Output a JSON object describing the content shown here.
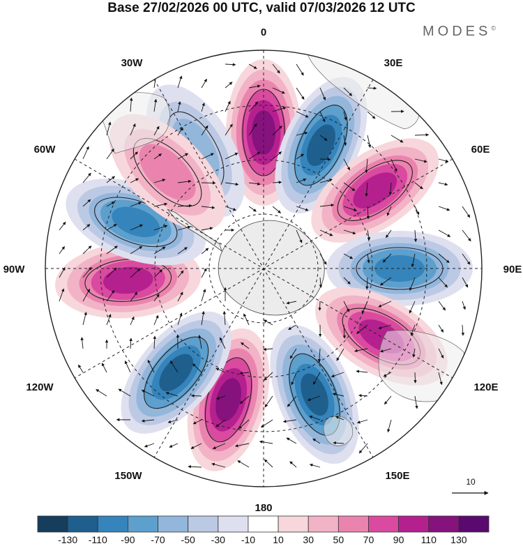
{
  "title": "Base 27/02/2026 00 UTC, valid 07/03/2026 12 UTC",
  "brand": {
    "name": "MODES",
    "mark": "©"
  },
  "map": {
    "projection": "south-polar-stereographic",
    "longitude_labels": {
      "top": "0",
      "top_right": "30E",
      "upper_right": "60E",
      "right": "90E",
      "lower_right": "120E",
      "bottom_right": "150E",
      "bottom": "180",
      "bottom_left": "150W",
      "lower_left": "120W",
      "left": "90W",
      "upper_left": "60W",
      "top_left": "30W"
    },
    "wind_reference": {
      "value": "10"
    },
    "anomaly_lobes": [
      {
        "sign": "positive",
        "magnitude": 110,
        "longitude_deg": 0
      },
      {
        "sign": "negative",
        "magnitude": 110,
        "longitude_deg": 25
      },
      {
        "sign": "positive",
        "magnitude": 100,
        "longitude_deg": 55
      },
      {
        "sign": "negative",
        "magnitude": 90,
        "longitude_deg": 90
      },
      {
        "sign": "positive",
        "magnitude": 90,
        "longitude_deg": 120
      },
      {
        "sign": "negative",
        "magnitude": 110,
        "longitude_deg": 158
      },
      {
        "sign": "positive",
        "magnitude": 110,
        "longitude_deg": -165
      },
      {
        "sign": "negative",
        "magnitude": 110,
        "longitude_deg": -140
      },
      {
        "sign": "positive",
        "magnitude": 90,
        "longitude_deg": -95
      },
      {
        "sign": "negative",
        "magnitude": 90,
        "longitude_deg": -70
      },
      {
        "sign": "negative",
        "magnitude": 50,
        "longitude_deg": -30
      },
      {
        "sign": "positive",
        "magnitude": 50,
        "longitude_deg": -45
      }
    ]
  },
  "colorbar": {
    "colors": [
      "#163d5c",
      "#1f5f8e",
      "#3584bb",
      "#5d9fcd",
      "#93b6db",
      "#bcc9e4",
      "#dfe0ef",
      "#ffffff",
      "#f7d7dc",
      "#f2b3c6",
      "#ea84ae",
      "#d94aa0",
      "#b5208f",
      "#86127e",
      "#5a0a6e"
    ],
    "labels": [
      "-130",
      "-110",
      "-90",
      "-70",
      "-50",
      "-30",
      "-10",
      "10",
      "30",
      "50",
      "70",
      "90",
      "110",
      "130"
    ]
  }
}
